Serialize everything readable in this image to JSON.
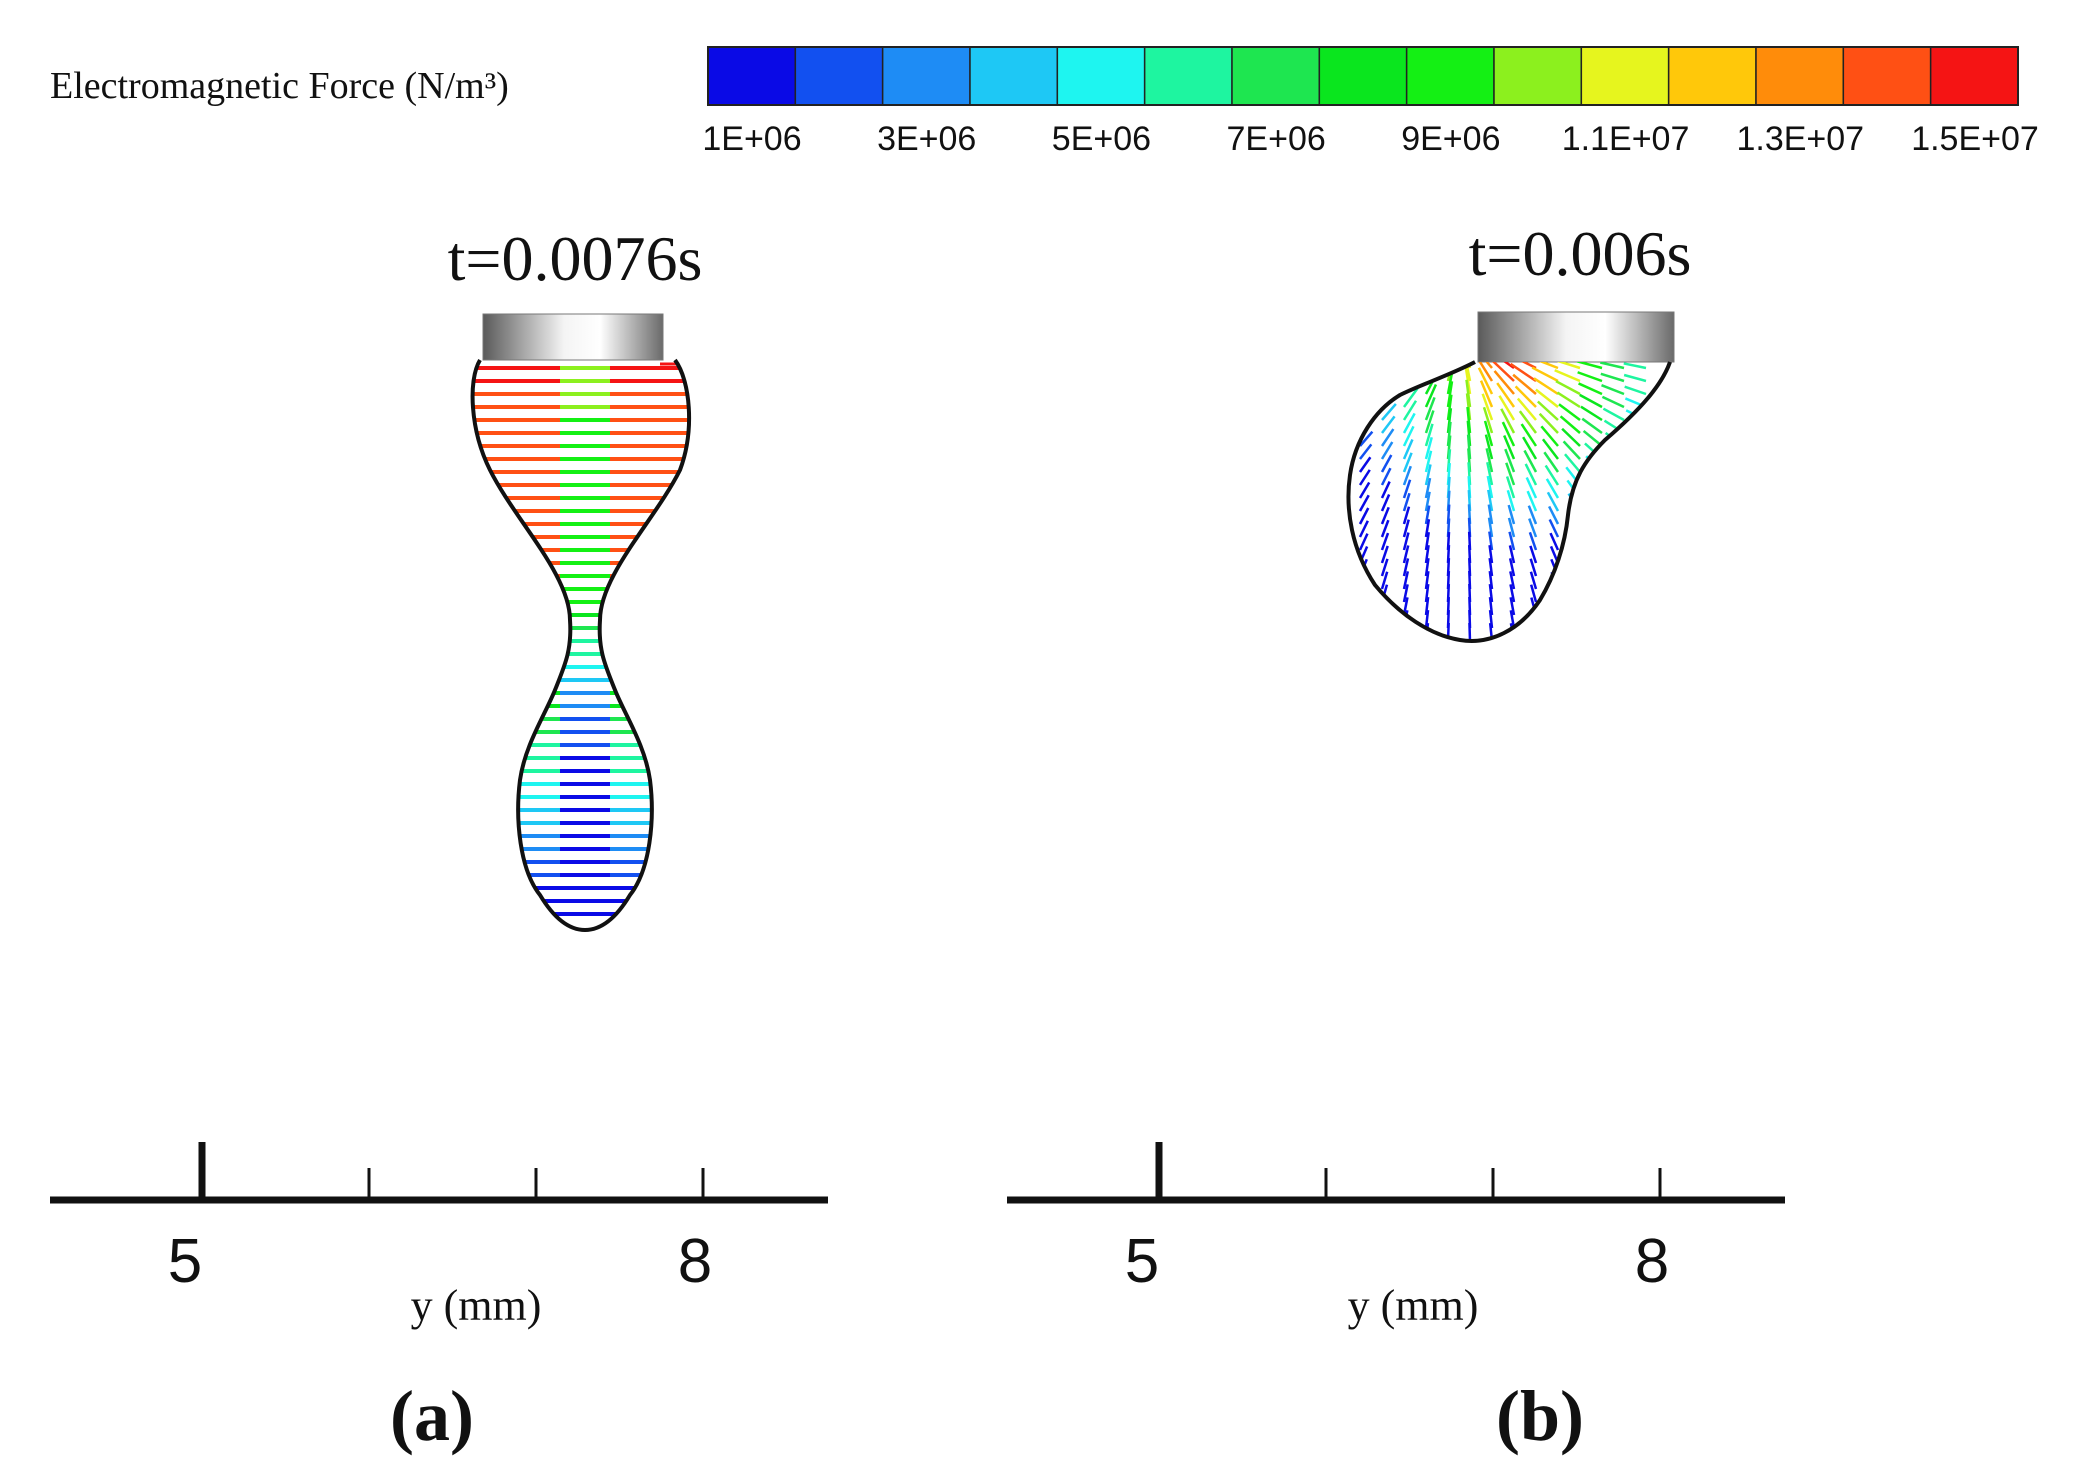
{
  "colorbar": {
    "title": "Electromagnetic Force (N/m³)",
    "colors": [
      "#0a0ae6",
      "#1250f0",
      "#1e8cf5",
      "#1ec8f5",
      "#1ef5f0",
      "#1ef5a0",
      "#1ee650",
      "#0ae61e",
      "#14f014",
      "#8cf01e",
      "#e6f51e",
      "#ffc80a",
      "#ff8c0a",
      "#ff5014",
      "#f51414"
    ],
    "tick_labels": [
      "1E+06",
      "3E+06",
      "5E+06",
      "7E+06",
      "9E+06",
      "1.1E+07",
      "1.3E+07",
      "1.5E+07"
    ],
    "min_value": 1000000,
    "max_value": 15000000
  },
  "panels": [
    {
      "id": "a",
      "time_label": "t=0.0076s",
      "caption": "(a)",
      "axis": {
        "label": "y (mm)",
        "tick_labels": [
          "5",
          "8"
        ]
      }
    },
    {
      "id": "b",
      "time_label": "t=0.006s",
      "caption": "(b)",
      "axis": {
        "label": "y (mm)",
        "tick_labels": [
          "5",
          "8"
        ]
      }
    }
  ],
  "icons": {
    "electrode": "electrode-wire-icon",
    "droplet": "molten-droplet-icon"
  }
}
